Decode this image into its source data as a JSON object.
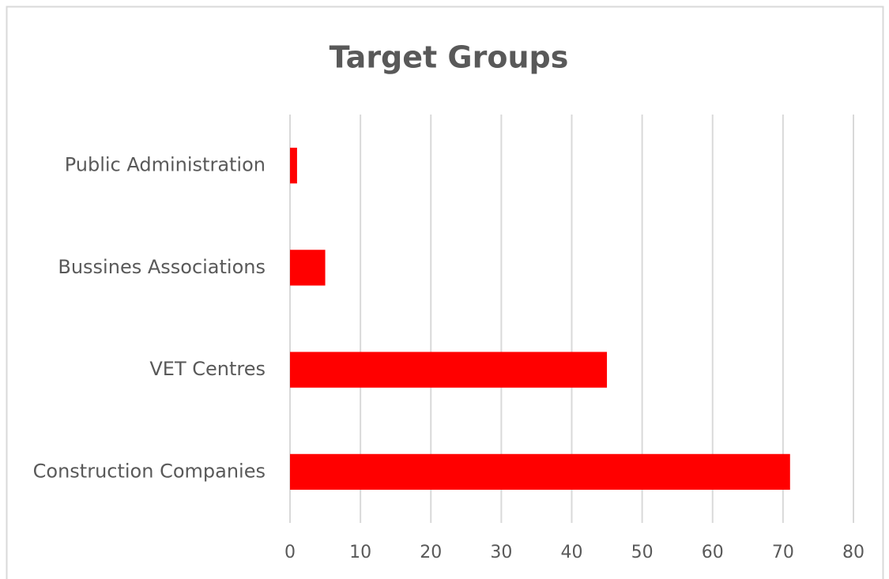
{
  "chart_data": {
    "type": "bar",
    "orientation": "horizontal",
    "title": "Target Groups",
    "categories": [
      "Public Administration",
      "Bussines Associations",
      "VET Centres",
      "Construction Companies"
    ],
    "values": [
      1,
      5,
      45,
      71
    ],
    "color": "#ff0000",
    "xlim": [
      0,
      80
    ],
    "xticks": [
      0,
      10,
      20,
      30,
      40,
      50,
      60,
      70,
      80
    ],
    "grid": true
  }
}
